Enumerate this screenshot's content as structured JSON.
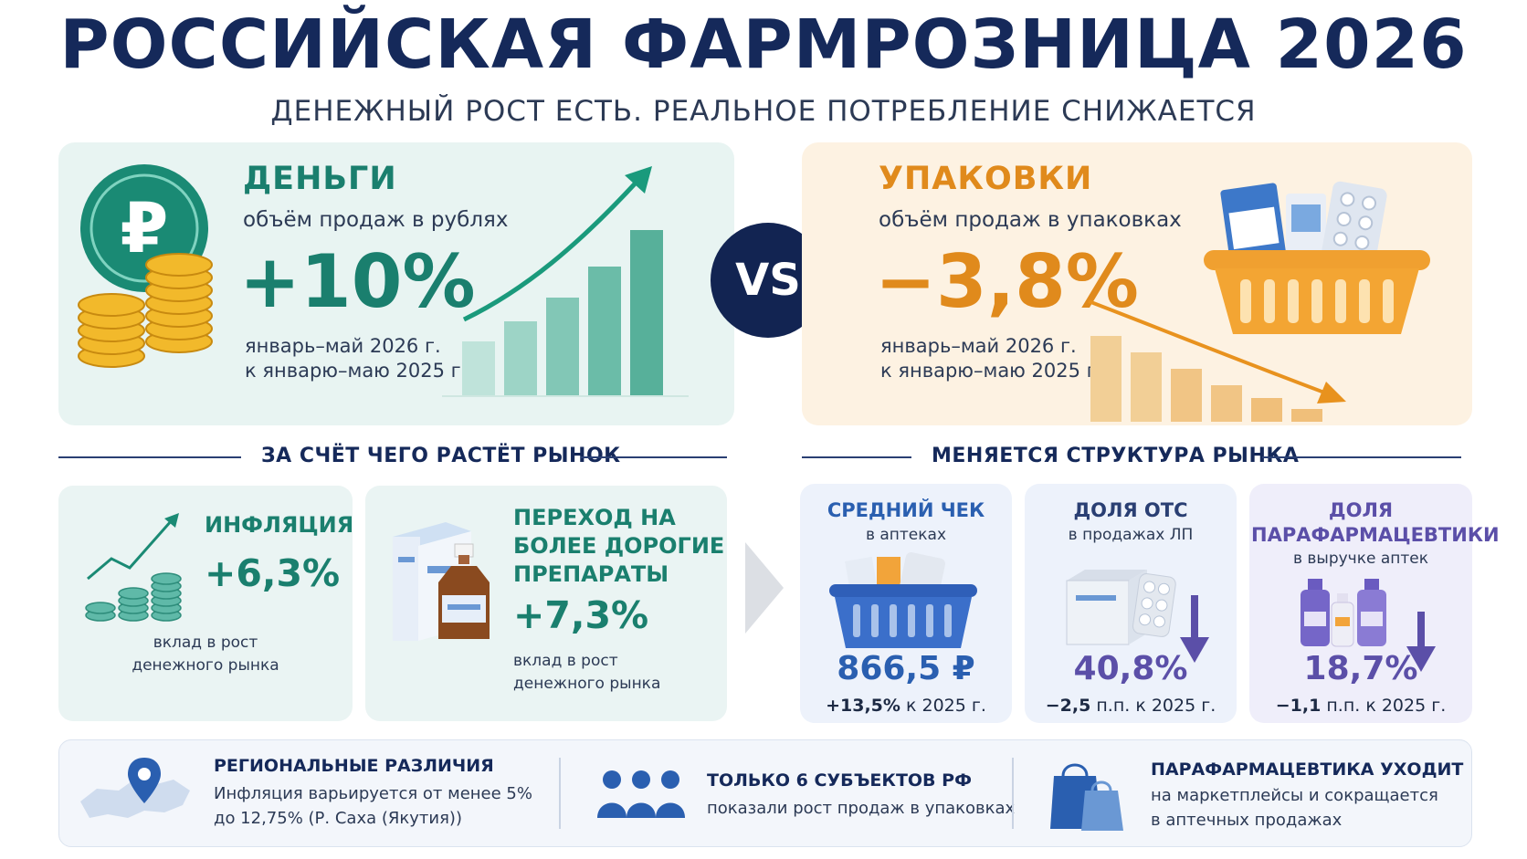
{
  "header": {
    "title": "РОССИЙСКАЯ ФАРМРОЗНИЦА 2026",
    "subtitle": "ДЕНЕЖНЫЙ РОСТ ЕСТЬ. РЕАЛЬНОЕ ПОТРЕБЛЕНИЕ СНИЖАЕТСЯ"
  },
  "money": {
    "heading": "ДЕНЬГИ",
    "subheading": "объём продаж в рублях",
    "value": "+10%",
    "period_line1": "январь–май 2026 г.",
    "period_line2": "к январю–маю 2025 г.",
    "icon": "ruble-coins-icon"
  },
  "vs_label": "VS",
  "packages": {
    "heading": "УПАКОВКИ",
    "subheading": "объём продаж в упаковках",
    "value": "−3,8%",
    "period_line1": "январь–май 2026 г.",
    "period_line2": "к январю–маю 2025 г.",
    "icon": "medicine-basket-icon"
  },
  "growth_section": {
    "title": "ЗА СЧЁТ ЧЕГО РАСТЁТ РЫНОК",
    "inflation": {
      "title": "ИНФЛЯЦИЯ",
      "value": "+6,3%",
      "caption_line1": "вклад в рост",
      "caption_line2": "денежного рынка"
    },
    "expensive": {
      "title_line1": "ПЕРЕХОД НА",
      "title_line2": "БОЛЕЕ ДОРОГИЕ",
      "title_line3": "ПРЕПАРАТЫ",
      "value": "+7,3%",
      "caption_line1": "вклад в рост",
      "caption_line2": "денежного рынка"
    }
  },
  "structure_section": {
    "title": "МЕНЯЕТСЯ СТРУКТУРА РЫНКА",
    "avg_check": {
      "title": "СРЕДНИЙ ЧЕК",
      "subtitle": "в аптеках",
      "value": "866,5 ₽",
      "delta_bold": "+13,5%",
      "delta_rest": " к 2025 г."
    },
    "otc_share": {
      "title": "ДОЛЯ ОТС",
      "subtitle": "в продажах ЛП",
      "value": "40,8%",
      "delta_bold": "−2,5",
      "delta_rest": " п.п. к 2025 г."
    },
    "parapharm_share": {
      "title_line1": "ДОЛЯ",
      "title_line2": "ПАРАФАРМАЦЕВТИКИ",
      "subtitle": "в выручке аптек",
      "value": "18,7%",
      "delta_bold": "−1,1",
      "delta_rest": " п.п. к 2025 г."
    }
  },
  "footer": {
    "regional": {
      "title": "РЕГИОНАЛЬНЫЕ РАЗЛИЧИЯ",
      "line1": "Инфляция варьируется от менее 5%",
      "line2": "до 12,75% (Р. Саха (Якутия))"
    },
    "subjects": {
      "title": "ТОЛЬКО 6 СУБЪЕКТОВ РФ",
      "line1": "показали рост продаж в упаковках"
    },
    "marketplaces": {
      "title": "ПАРАФАРМАЦЕВТИКА УХОДИТ",
      "line1": "на маркетплейсы и сокращается",
      "line2": "в аптечных продажах"
    }
  },
  "colors": {
    "navy": "#15295a",
    "teal": "#1a7f6e",
    "orange": "#e08a1c",
    "blue": "#2a5fb0",
    "purple": "#5b4fa8"
  }
}
